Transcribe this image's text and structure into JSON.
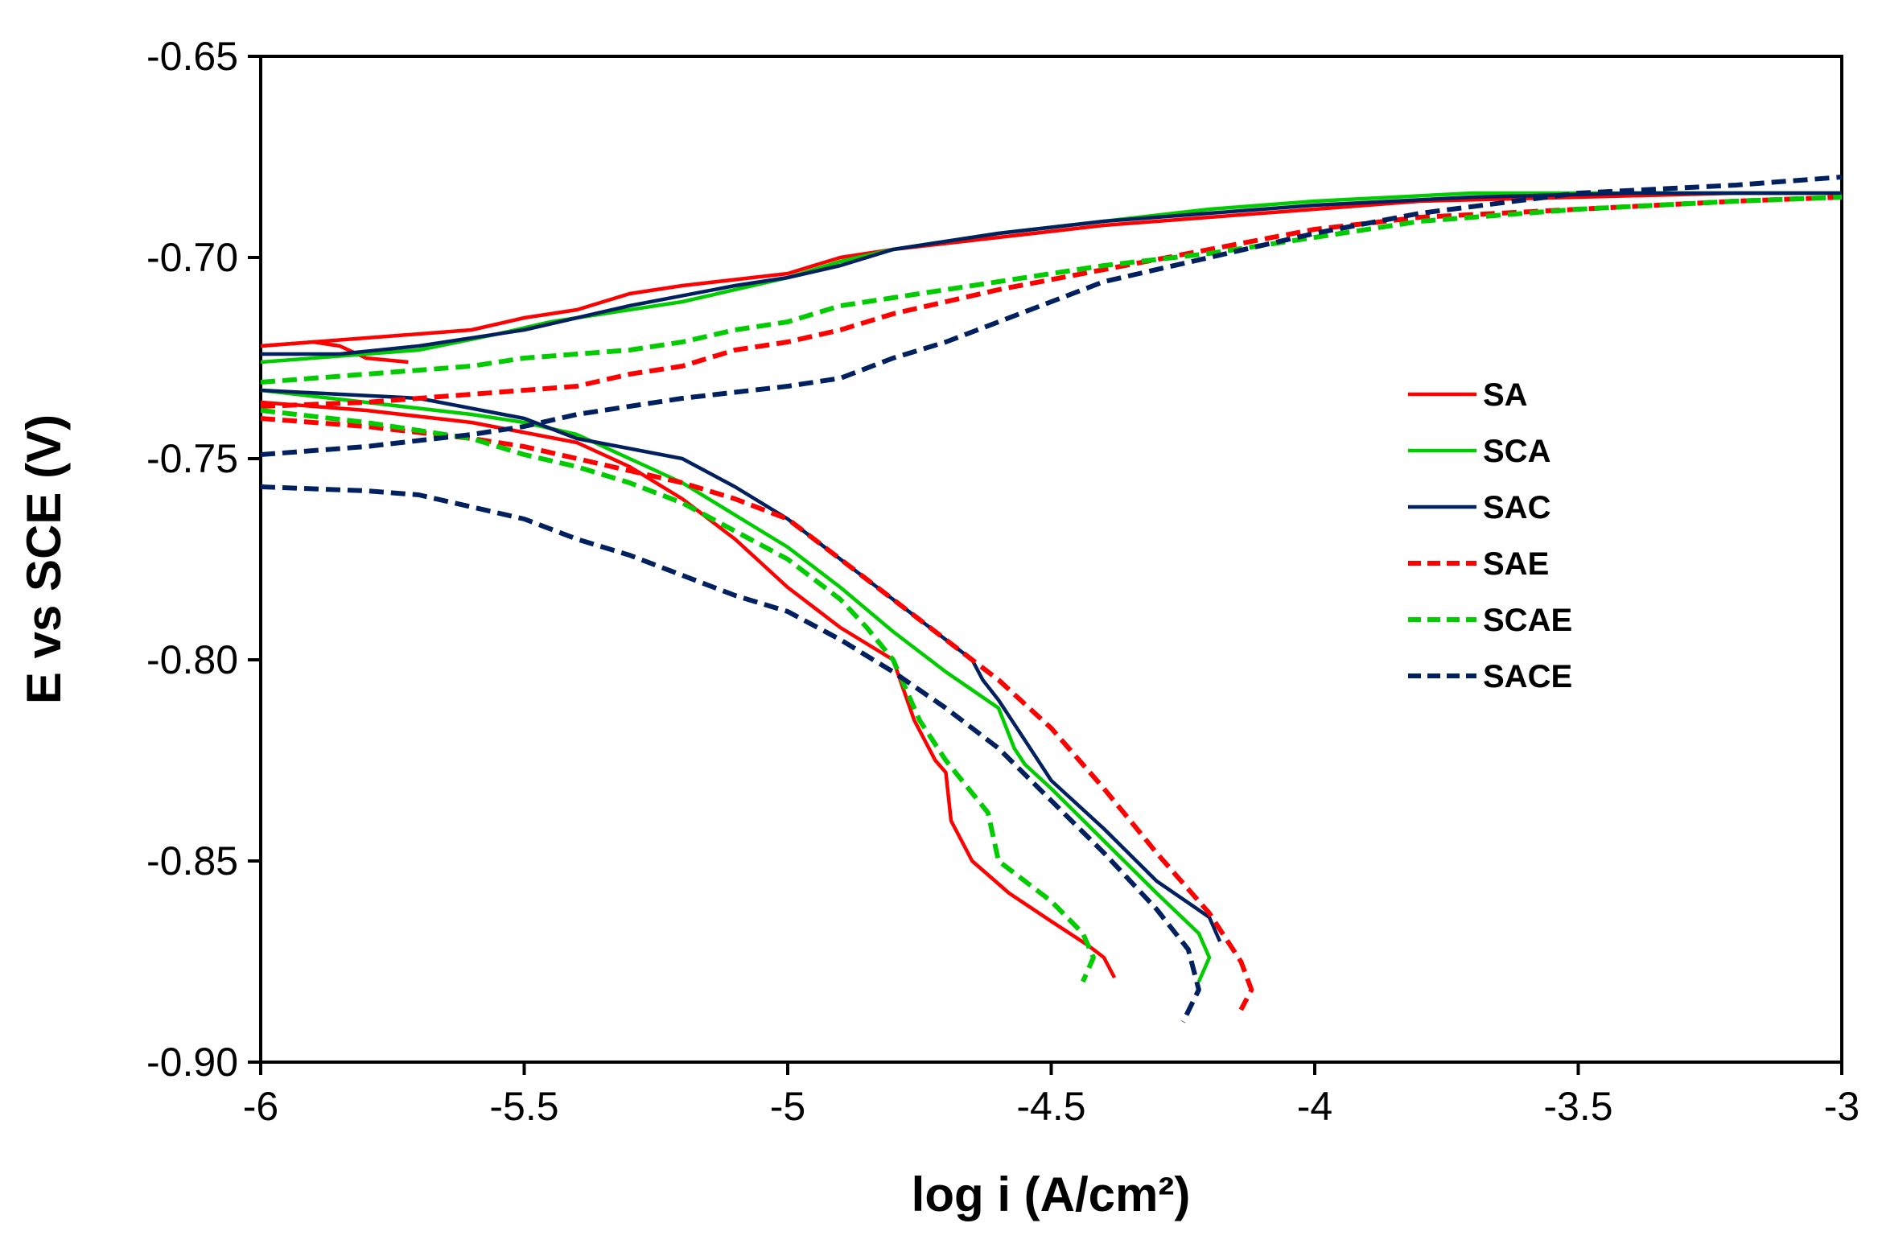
{
  "chart_data": {
    "type": "line",
    "title": "",
    "xlabel": "log i (A/cm²)",
    "ylabel": "E vs SCE (V)",
    "xlim": [
      -6,
      -3
    ],
    "ylim": [
      -0.9,
      -0.65
    ],
    "xticks": [
      -6,
      -5.5,
      -5,
      -4.5,
      -4,
      -3.5,
      -3
    ],
    "xtick_labels": [
      "-6",
      "-5.5",
      "-5",
      "-4.5",
      "-4",
      "-3.5",
      "-3"
    ],
    "yticks": [
      -0.65,
      -0.7,
      -0.75,
      -0.8,
      -0.85,
      -0.9
    ],
    "ytick_labels": [
      "-0.65",
      "-0.70",
      "-0.75",
      "-0.80",
      "-0.85",
      "-0.90"
    ],
    "grid": false,
    "legend_position": "right",
    "series": [
      {
        "name": "SA",
        "color": "#ff0000",
        "dash": "solid",
        "anodic": [
          [
            -5.72,
            -0.726
          ],
          [
            -5.8,
            -0.725
          ],
          [
            -5.85,
            -0.722
          ],
          [
            -5.9,
            -0.721
          ],
          [
            -6.0,
            -0.722
          ]
        ],
        "anodic_upper": [
          [
            -6.0,
            -0.722
          ],
          [
            -5.8,
            -0.72
          ],
          [
            -5.6,
            -0.718
          ],
          [
            -5.5,
            -0.715
          ],
          [
            -5.4,
            -0.713
          ],
          [
            -5.3,
            -0.709
          ],
          [
            -5.2,
            -0.707
          ],
          [
            -5.0,
            -0.704
          ],
          [
            -4.9,
            -0.7
          ],
          [
            -4.8,
            -0.698
          ],
          [
            -4.6,
            -0.695
          ],
          [
            -4.4,
            -0.692
          ],
          [
            -4.2,
            -0.69
          ],
          [
            -4.0,
            -0.688
          ],
          [
            -3.8,
            -0.686
          ],
          [
            -3.5,
            -0.685
          ],
          [
            -3.2,
            -0.684
          ],
          [
            -3.0,
            -0.684
          ]
        ],
        "cathodic": [
          [
            -6.0,
            -0.736
          ],
          [
            -5.8,
            -0.738
          ],
          [
            -5.6,
            -0.741
          ],
          [
            -5.4,
            -0.746
          ],
          [
            -5.3,
            -0.752
          ],
          [
            -5.2,
            -0.76
          ],
          [
            -5.1,
            -0.77
          ],
          [
            -5.0,
            -0.782
          ],
          [
            -4.9,
            -0.792
          ],
          [
            -4.8,
            -0.8
          ],
          [
            -4.76,
            -0.815
          ],
          [
            -4.72,
            -0.825
          ],
          [
            -4.7,
            -0.828
          ],
          [
            -4.69,
            -0.84
          ],
          [
            -4.65,
            -0.85
          ],
          [
            -4.58,
            -0.858
          ],
          [
            -4.5,
            -0.865
          ],
          [
            -4.43,
            -0.871
          ],
          [
            -4.4,
            -0.874
          ],
          [
            -4.38,
            -0.879
          ]
        ]
      },
      {
        "name": "SCA",
        "color": "#00cc00",
        "dash": "solid",
        "anodic": [
          [
            -6.0,
            -0.726
          ],
          [
            -5.8,
            -0.724
          ],
          [
            -5.7,
            -0.723
          ],
          [
            -5.55,
            -0.719
          ],
          [
            -5.45,
            -0.716
          ],
          [
            -5.35,
            -0.714
          ],
          [
            -5.2,
            -0.711
          ],
          [
            -5.0,
            -0.705
          ],
          [
            -4.9,
            -0.701
          ],
          [
            -4.8,
            -0.698
          ],
          [
            -4.6,
            -0.694
          ],
          [
            -4.4,
            -0.691
          ],
          [
            -4.2,
            -0.688
          ],
          [
            -4.0,
            -0.686
          ],
          [
            -3.7,
            -0.684
          ],
          [
            -3.4,
            -0.684
          ],
          [
            -3.0,
            -0.684
          ]
        ],
        "cathodic": [
          [
            -6.0,
            -0.733
          ],
          [
            -5.8,
            -0.736
          ],
          [
            -5.6,
            -0.739
          ],
          [
            -5.5,
            -0.741
          ],
          [
            -5.4,
            -0.744
          ],
          [
            -5.3,
            -0.75
          ],
          [
            -5.2,
            -0.756
          ],
          [
            -5.1,
            -0.764
          ],
          [
            -5.0,
            -0.772
          ],
          [
            -4.9,
            -0.782
          ],
          [
            -4.8,
            -0.793
          ],
          [
            -4.7,
            -0.803
          ],
          [
            -4.6,
            -0.812
          ],
          [
            -4.57,
            -0.822
          ],
          [
            -4.55,
            -0.826
          ],
          [
            -4.5,
            -0.832
          ],
          [
            -4.4,
            -0.845
          ],
          [
            -4.3,
            -0.858
          ],
          [
            -4.22,
            -0.868
          ],
          [
            -4.2,
            -0.874
          ],
          [
            -4.22,
            -0.88
          ]
        ]
      },
      {
        "name": "SAC",
        "color": "#002060",
        "dash": "solid",
        "anodic": [
          [
            -6.0,
            -0.724
          ],
          [
            -5.85,
            -0.724
          ],
          [
            -5.7,
            -0.722
          ],
          [
            -5.5,
            -0.718
          ],
          [
            -5.3,
            -0.712
          ],
          [
            -5.1,
            -0.707
          ],
          [
            -5.0,
            -0.705
          ],
          [
            -4.9,
            -0.702
          ],
          [
            -4.8,
            -0.698
          ],
          [
            -4.6,
            -0.694
          ],
          [
            -4.4,
            -0.691
          ],
          [
            -4.2,
            -0.689
          ],
          [
            -4.0,
            -0.687
          ],
          [
            -3.7,
            -0.685
          ],
          [
            -3.4,
            -0.684
          ],
          [
            -3.0,
            -0.684
          ]
        ],
        "cathodic": [
          [
            -6.0,
            -0.733
          ],
          [
            -5.7,
            -0.735
          ],
          [
            -5.5,
            -0.74
          ],
          [
            -5.4,
            -0.745
          ],
          [
            -5.2,
            -0.75
          ],
          [
            -5.1,
            -0.757
          ],
          [
            -5.0,
            -0.765
          ],
          [
            -4.9,
            -0.775
          ],
          [
            -4.8,
            -0.785
          ],
          [
            -4.7,
            -0.795
          ],
          [
            -4.65,
            -0.8
          ],
          [
            -4.63,
            -0.805
          ],
          [
            -4.6,
            -0.81
          ],
          [
            -4.55,
            -0.82
          ],
          [
            -4.5,
            -0.83
          ],
          [
            -4.4,
            -0.842
          ],
          [
            -4.3,
            -0.855
          ],
          [
            -4.2,
            -0.864
          ],
          [
            -4.18,
            -0.87
          ]
        ]
      },
      {
        "name": "SAE",
        "color": "#ff0000",
        "dash": "dashed",
        "anodic": [
          [
            -6.0,
            -0.737
          ],
          [
            -5.8,
            -0.736
          ],
          [
            -5.6,
            -0.734
          ],
          [
            -5.5,
            -0.733
          ],
          [
            -5.4,
            -0.732
          ],
          [
            -5.3,
            -0.729
          ],
          [
            -5.2,
            -0.727
          ],
          [
            -5.1,
            -0.723
          ],
          [
            -5.0,
            -0.721
          ],
          [
            -4.9,
            -0.718
          ],
          [
            -4.8,
            -0.714
          ],
          [
            -4.7,
            -0.711
          ],
          [
            -4.6,
            -0.708
          ],
          [
            -4.4,
            -0.703
          ],
          [
            -4.2,
            -0.698
          ],
          [
            -4.0,
            -0.693
          ],
          [
            -3.8,
            -0.69
          ],
          [
            -3.5,
            -0.688
          ],
          [
            -3.2,
            -0.686
          ],
          [
            -3.0,
            -0.685
          ]
        ],
        "cathodic": [
          [
            -6.0,
            -0.74
          ],
          [
            -5.8,
            -0.742
          ],
          [
            -5.6,
            -0.745
          ],
          [
            -5.5,
            -0.747
          ],
          [
            -5.4,
            -0.75
          ],
          [
            -5.3,
            -0.753
          ],
          [
            -5.2,
            -0.756
          ],
          [
            -5.1,
            -0.76
          ],
          [
            -5.0,
            -0.765
          ],
          [
            -4.9,
            -0.775
          ],
          [
            -4.8,
            -0.785
          ],
          [
            -4.7,
            -0.795
          ],
          [
            -4.6,
            -0.805
          ],
          [
            -4.5,
            -0.817
          ],
          [
            -4.4,
            -0.832
          ],
          [
            -4.3,
            -0.848
          ],
          [
            -4.2,
            -0.863
          ],
          [
            -4.14,
            -0.875
          ],
          [
            -4.12,
            -0.882
          ],
          [
            -4.14,
            -0.887
          ]
        ]
      },
      {
        "name": "SCAE",
        "color": "#00cc00",
        "dash": "dashed",
        "anodic": [
          [
            -6.0,
            -0.731
          ],
          [
            -5.8,
            -0.729
          ],
          [
            -5.6,
            -0.727
          ],
          [
            -5.5,
            -0.725
          ],
          [
            -5.4,
            -0.724
          ],
          [
            -5.3,
            -0.723
          ],
          [
            -5.2,
            -0.721
          ],
          [
            -5.1,
            -0.718
          ],
          [
            -5.0,
            -0.716
          ],
          [
            -4.9,
            -0.712
          ],
          [
            -4.8,
            -0.71
          ],
          [
            -4.6,
            -0.706
          ],
          [
            -4.4,
            -0.702
          ],
          [
            -4.2,
            -0.699
          ],
          [
            -4.0,
            -0.695
          ],
          [
            -3.8,
            -0.691
          ],
          [
            -3.5,
            -0.688
          ],
          [
            -3.2,
            -0.686
          ],
          [
            -3.0,
            -0.685
          ]
        ],
        "cathodic": [
          [
            -6.0,
            -0.738
          ],
          [
            -5.8,
            -0.741
          ],
          [
            -5.6,
            -0.745
          ],
          [
            -5.5,
            -0.749
          ],
          [
            -5.4,
            -0.752
          ],
          [
            -5.3,
            -0.756
          ],
          [
            -5.2,
            -0.761
          ],
          [
            -5.1,
            -0.768
          ],
          [
            -5.0,
            -0.775
          ],
          [
            -4.9,
            -0.785
          ],
          [
            -4.85,
            -0.792
          ],
          [
            -4.8,
            -0.8
          ],
          [
            -4.75,
            -0.815
          ],
          [
            -4.7,
            -0.825
          ],
          [
            -4.62,
            -0.838
          ],
          [
            -4.6,
            -0.85
          ],
          [
            -4.5,
            -0.86
          ],
          [
            -4.44,
            -0.868
          ],
          [
            -4.42,
            -0.874
          ],
          [
            -4.44,
            -0.88
          ]
        ]
      },
      {
        "name": "SACE",
        "color": "#002060",
        "dash": "dashed",
        "anodic": [
          [
            -6.0,
            -0.749
          ],
          [
            -5.8,
            -0.747
          ],
          [
            -5.6,
            -0.744
          ],
          [
            -5.5,
            -0.742
          ],
          [
            -5.4,
            -0.739
          ],
          [
            -5.3,
            -0.737
          ],
          [
            -5.2,
            -0.735
          ],
          [
            -5.0,
            -0.732
          ],
          [
            -4.9,
            -0.73
          ],
          [
            -4.8,
            -0.725
          ],
          [
            -4.7,
            -0.721
          ],
          [
            -4.6,
            -0.716
          ],
          [
            -4.5,
            -0.711
          ],
          [
            -4.4,
            -0.706
          ],
          [
            -4.2,
            -0.7
          ],
          [
            -4.0,
            -0.694
          ],
          [
            -3.8,
            -0.689
          ],
          [
            -3.5,
            -0.684
          ],
          [
            -3.2,
            -0.682
          ],
          [
            -3.0,
            -0.68
          ]
        ],
        "cathodic": [
          [
            -6.0,
            -0.757
          ],
          [
            -5.8,
            -0.758
          ],
          [
            -5.7,
            -0.759
          ],
          [
            -5.6,
            -0.762
          ],
          [
            -5.5,
            -0.765
          ],
          [
            -5.4,
            -0.77
          ],
          [
            -5.3,
            -0.774
          ],
          [
            -5.2,
            -0.779
          ],
          [
            -5.1,
            -0.784
          ],
          [
            -5.0,
            -0.788
          ],
          [
            -4.9,
            -0.795
          ],
          [
            -4.8,
            -0.803
          ],
          [
            -4.7,
            -0.812
          ],
          [
            -4.6,
            -0.822
          ],
          [
            -4.5,
            -0.835
          ],
          [
            -4.4,
            -0.848
          ],
          [
            -4.3,
            -0.862
          ],
          [
            -4.24,
            -0.872
          ],
          [
            -4.22,
            -0.882
          ],
          [
            -4.25,
            -0.89
          ]
        ]
      }
    ]
  }
}
